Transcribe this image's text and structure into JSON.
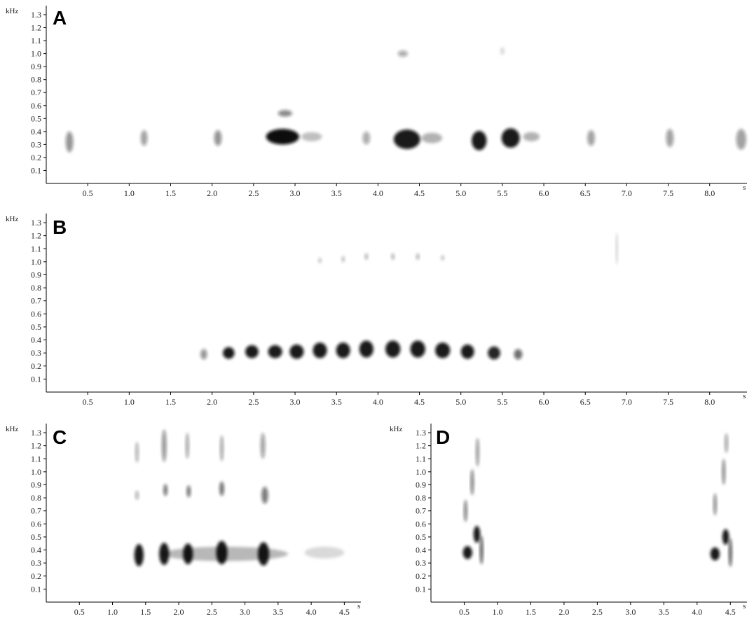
{
  "figure": {
    "y_unit": "kHz",
    "x_unit": "s",
    "blot_color": "#111111"
  },
  "chart_data": [
    {
      "type": "heatmap",
      "panel": "A",
      "y_ticks": [
        "0.1",
        "0.2",
        "0.3",
        "0.4",
        "0.5",
        "0.6",
        "0.7",
        "0.8",
        "0.9",
        "1.0",
        "1.1",
        "1.2",
        "1.3"
      ],
      "x_ticks": [
        "0.5",
        "1.0",
        "1.5",
        "2.0",
        "2.5",
        "3.0",
        "3.5",
        "4.0",
        "4.5",
        "5.0",
        "5.5",
        "6.0",
        "6.5",
        "7.0",
        "7.5",
        "8.0"
      ],
      "xlim": [
        0,
        8.45
      ],
      "ylim": [
        0,
        1.37
      ],
      "units": [
        {
          "t": 0.28,
          "f": 0.32,
          "w": 0.09,
          "h": 0.16,
          "d": 0.45
        },
        {
          "t": 1.18,
          "f": 0.35,
          "w": 0.08,
          "h": 0.12,
          "d": 0.4
        },
        {
          "t": 2.07,
          "f": 0.35,
          "w": 0.09,
          "h": 0.12,
          "d": 0.45
        },
        {
          "t": 2.85,
          "f": 0.36,
          "w": 0.4,
          "h": 0.12,
          "d": 1.0
        },
        {
          "t": 3.2,
          "f": 0.36,
          "w": 0.25,
          "h": 0.07,
          "d": 0.25
        },
        {
          "t": 2.88,
          "f": 0.54,
          "w": 0.17,
          "h": 0.05,
          "d": 0.5
        },
        {
          "t": 3.86,
          "f": 0.35,
          "w": 0.09,
          "h": 0.1,
          "d": 0.35
        },
        {
          "t": 4.35,
          "f": 0.34,
          "w": 0.32,
          "h": 0.15,
          "d": 0.95
        },
        {
          "t": 4.65,
          "f": 0.35,
          "w": 0.25,
          "h": 0.08,
          "d": 0.3
        },
        {
          "t": 4.3,
          "f": 1.0,
          "w": 0.12,
          "h": 0.05,
          "d": 0.35
        },
        {
          "t": 5.22,
          "f": 0.33,
          "w": 0.18,
          "h": 0.15,
          "d": 0.95
        },
        {
          "t": 5.6,
          "f": 0.35,
          "w": 0.22,
          "h": 0.15,
          "d": 0.95
        },
        {
          "t": 5.85,
          "f": 0.36,
          "w": 0.2,
          "h": 0.07,
          "d": 0.3
        },
        {
          "t": 5.5,
          "f": 1.02,
          "w": 0.05,
          "h": 0.06,
          "d": 0.15
        },
        {
          "t": 6.57,
          "f": 0.35,
          "w": 0.09,
          "h": 0.12,
          "d": 0.4
        },
        {
          "t": 7.52,
          "f": 0.35,
          "w": 0.09,
          "h": 0.14,
          "d": 0.4
        },
        {
          "t": 8.38,
          "f": 0.34,
          "w": 0.12,
          "h": 0.16,
          "d": 0.4
        }
      ]
    },
    {
      "type": "heatmap",
      "panel": "B",
      "y_ticks": [
        "0.1",
        "0.2",
        "0.3",
        "0.4",
        "0.5",
        "0.6",
        "0.7",
        "0.8",
        "0.9",
        "1.0",
        "1.1",
        "1.2",
        "1.3"
      ],
      "x_ticks": [
        "0.5",
        "1.0",
        "1.5",
        "2.0",
        "2.5",
        "3.0",
        "3.5",
        "4.0",
        "4.5",
        "5.0",
        "5.5",
        "6.0",
        "6.5",
        "7.0",
        "7.5",
        "8.0"
      ],
      "xlim": [
        0,
        8.45
      ],
      "ylim": [
        0,
        1.37
      ],
      "units": [
        {
          "t": 1.9,
          "f": 0.29,
          "w": 0.08,
          "h": 0.08,
          "d": 0.45
        },
        {
          "t": 2.2,
          "f": 0.3,
          "w": 0.14,
          "h": 0.09,
          "d": 0.95
        },
        {
          "t": 2.48,
          "f": 0.31,
          "w": 0.16,
          "h": 0.1,
          "d": 0.95
        },
        {
          "t": 2.76,
          "f": 0.31,
          "w": 0.17,
          "h": 0.1,
          "d": 0.95
        },
        {
          "t": 3.02,
          "f": 0.31,
          "w": 0.17,
          "h": 0.11,
          "d": 0.95
        },
        {
          "t": 3.3,
          "f": 0.32,
          "w": 0.17,
          "h": 0.12,
          "d": 0.95
        },
        {
          "t": 3.58,
          "f": 0.32,
          "w": 0.17,
          "h": 0.12,
          "d": 0.95
        },
        {
          "t": 3.86,
          "f": 0.33,
          "w": 0.17,
          "h": 0.13,
          "d": 0.95
        },
        {
          "t": 4.18,
          "f": 0.33,
          "w": 0.18,
          "h": 0.13,
          "d": 0.95
        },
        {
          "t": 4.48,
          "f": 0.33,
          "w": 0.18,
          "h": 0.13,
          "d": 0.95
        },
        {
          "t": 4.78,
          "f": 0.32,
          "w": 0.18,
          "h": 0.12,
          "d": 0.95
        },
        {
          "t": 5.08,
          "f": 0.31,
          "w": 0.16,
          "h": 0.11,
          "d": 0.95
        },
        {
          "t": 5.4,
          "f": 0.3,
          "w": 0.15,
          "h": 0.1,
          "d": 0.9
        },
        {
          "t": 5.69,
          "f": 0.29,
          "w": 0.1,
          "h": 0.08,
          "d": 0.6
        },
        {
          "t": 3.3,
          "f": 1.01,
          "w": 0.04,
          "h": 0.04,
          "d": 0.25
        },
        {
          "t": 3.58,
          "f": 1.02,
          "w": 0.04,
          "h": 0.05,
          "d": 0.25
        },
        {
          "t": 3.86,
          "f": 1.04,
          "w": 0.04,
          "h": 0.05,
          "d": 0.3
        },
        {
          "t": 4.18,
          "f": 1.04,
          "w": 0.04,
          "h": 0.05,
          "d": 0.3
        },
        {
          "t": 4.48,
          "f": 1.04,
          "w": 0.04,
          "h": 0.05,
          "d": 0.3
        },
        {
          "t": 4.78,
          "f": 1.03,
          "w": 0.04,
          "h": 0.04,
          "d": 0.25
        },
        {
          "t": 6.88,
          "f": 1.1,
          "w": 0.02,
          "h": 0.25,
          "d": 0.2
        }
      ]
    },
    {
      "type": "heatmap",
      "panel": "C",
      "y_ticks": [
        "0.1",
        "0.2",
        "0.3",
        "0.4",
        "0.5",
        "0.6",
        "0.7",
        "0.8",
        "0.9",
        "1.0",
        "1.1",
        "1.2",
        "1.3"
      ],
      "x_ticks": [
        "0.5",
        "1.0",
        "1.5",
        "2.0",
        "2.5",
        "3.0",
        "3.5",
        "4.0",
        "4.5"
      ],
      "xlim": [
        0,
        4.75
      ],
      "ylim": [
        0,
        1.37
      ],
      "units": [
        {
          "t": 1.4,
          "f": 0.36,
          "w": 0.14,
          "h": 0.17,
          "d": 0.95
        },
        {
          "t": 1.78,
          "f": 0.37,
          "w": 0.15,
          "h": 0.17,
          "d": 0.95
        },
        {
          "t": 2.14,
          "f": 0.37,
          "w": 0.15,
          "h": 0.16,
          "d": 0.95
        },
        {
          "t": 2.65,
          "f": 0.38,
          "w": 0.17,
          "h": 0.18,
          "d": 0.95
        },
        {
          "t": 3.28,
          "f": 0.37,
          "w": 0.17,
          "h": 0.18,
          "d": 0.95
        },
        {
          "t": 2.7,
          "f": 0.37,
          "w": 1.9,
          "h": 0.11,
          "d": 0.28
        },
        {
          "t": 4.2,
          "f": 0.38,
          "w": 0.6,
          "h": 0.09,
          "d": 0.15
        },
        {
          "t": 1.37,
          "f": 0.82,
          "w": 0.05,
          "h": 0.07,
          "d": 0.35
        },
        {
          "t": 1.8,
          "f": 0.86,
          "w": 0.06,
          "h": 0.09,
          "d": 0.6
        },
        {
          "t": 2.15,
          "f": 0.85,
          "w": 0.06,
          "h": 0.09,
          "d": 0.6
        },
        {
          "t": 2.65,
          "f": 0.87,
          "w": 0.07,
          "h": 0.11,
          "d": 0.6
        },
        {
          "t": 3.3,
          "f": 0.82,
          "w": 0.1,
          "h": 0.13,
          "d": 0.55
        },
        {
          "t": 1.37,
          "f": 1.15,
          "w": 0.05,
          "h": 0.16,
          "d": 0.35
        },
        {
          "t": 1.78,
          "f": 1.2,
          "w": 0.07,
          "h": 0.25,
          "d": 0.45
        },
        {
          "t": 2.13,
          "f": 1.2,
          "w": 0.05,
          "h": 0.2,
          "d": 0.4
        },
        {
          "t": 2.65,
          "f": 1.18,
          "w": 0.05,
          "h": 0.2,
          "d": 0.4
        },
        {
          "t": 3.27,
          "f": 1.2,
          "w": 0.07,
          "h": 0.2,
          "d": 0.4
        }
      ]
    },
    {
      "type": "heatmap",
      "panel": "D",
      "y_ticks": [
        "0.1",
        "0.2",
        "0.3",
        "0.4",
        "0.5",
        "0.6",
        "0.7",
        "0.8",
        "0.9",
        "1.0",
        "1.1",
        "1.2",
        "1.3"
      ],
      "x_ticks": [
        "0.5",
        "1.0",
        "1.5",
        "2.0",
        "2.5",
        "3.0",
        "3.5",
        "4.0",
        "4.5"
      ],
      "xlim": [
        0,
        4.75
      ],
      "ylim": [
        0,
        1.37
      ],
      "units": [
        {
          "t": 0.55,
          "f": 0.38,
          "w": 0.14,
          "h": 0.1,
          "d": 0.95
        },
        {
          "t": 0.69,
          "f": 0.52,
          "w": 0.1,
          "h": 0.13,
          "d": 0.95
        },
        {
          "t": 0.76,
          "f": 0.4,
          "w": 0.05,
          "h": 0.22,
          "d": 0.7
        },
        {
          "t": 0.52,
          "f": 0.7,
          "w": 0.05,
          "h": 0.17,
          "d": 0.55
        },
        {
          "t": 0.62,
          "f": 0.92,
          "w": 0.05,
          "h": 0.2,
          "d": 0.55
        },
        {
          "t": 0.7,
          "f": 1.15,
          "w": 0.05,
          "h": 0.22,
          "d": 0.45
        },
        {
          "t": 4.27,
          "f": 0.37,
          "w": 0.14,
          "h": 0.1,
          "d": 0.95
        },
        {
          "t": 4.43,
          "f": 0.5,
          "w": 0.1,
          "h": 0.12,
          "d": 0.95
        },
        {
          "t": 4.5,
          "f": 0.38,
          "w": 0.05,
          "h": 0.22,
          "d": 0.7
        },
        {
          "t": 4.27,
          "f": 0.75,
          "w": 0.05,
          "h": 0.17,
          "d": 0.5
        },
        {
          "t": 4.4,
          "f": 1.0,
          "w": 0.05,
          "h": 0.2,
          "d": 0.5
        },
        {
          "t": 4.44,
          "f": 1.22,
          "w": 0.05,
          "h": 0.15,
          "d": 0.4
        }
      ]
    }
  ]
}
